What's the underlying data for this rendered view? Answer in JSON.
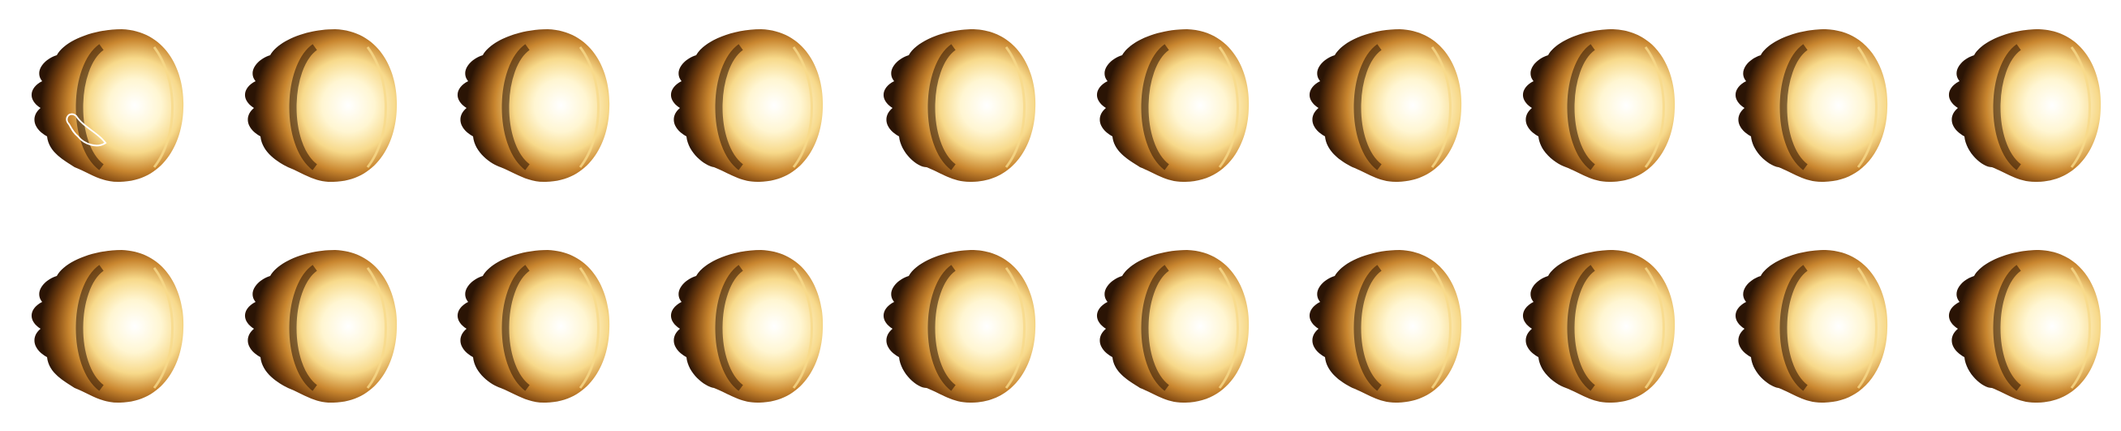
{
  "figure": {
    "rows": 2,
    "columns": 10,
    "panels": [
      {
        "row": 1,
        "col": 1,
        "inner_outline": true
      },
      {
        "row": 1,
        "col": 2,
        "inner_outline": false
      },
      {
        "row": 1,
        "col": 3,
        "inner_outline": false
      },
      {
        "row": 1,
        "col": 4,
        "inner_outline": false
      },
      {
        "row": 1,
        "col": 5,
        "inner_outline": false
      },
      {
        "row": 1,
        "col": 6,
        "inner_outline": false
      },
      {
        "row": 1,
        "col": 7,
        "inner_outline": false
      },
      {
        "row": 1,
        "col": 8,
        "inner_outline": false
      },
      {
        "row": 1,
        "col": 9,
        "inner_outline": false
      },
      {
        "row": 1,
        "col": 10,
        "inner_outline": false
      },
      {
        "row": 2,
        "col": 1,
        "inner_outline": false
      },
      {
        "row": 2,
        "col": 2,
        "inner_outline": false
      },
      {
        "row": 2,
        "col": 3,
        "inner_outline": false
      },
      {
        "row": 2,
        "col": 4,
        "inner_outline": false
      },
      {
        "row": 2,
        "col": 5,
        "inner_outline": false
      },
      {
        "row": 2,
        "col": 6,
        "inner_outline": false
      },
      {
        "row": 2,
        "col": 7,
        "inner_outline": false
      },
      {
        "row": 2,
        "col": 8,
        "inner_outline": false
      },
      {
        "row": 2,
        "col": 9,
        "inner_outline": false
      },
      {
        "row": 2,
        "col": 10,
        "inner_outline": false
      }
    ],
    "colormap": [
      "#ffffff",
      "#fff6d2",
      "#f7d98a",
      "#c9862f",
      "#7a4310",
      "#2a1405"
    ],
    "background": "#ffffff"
  }
}
